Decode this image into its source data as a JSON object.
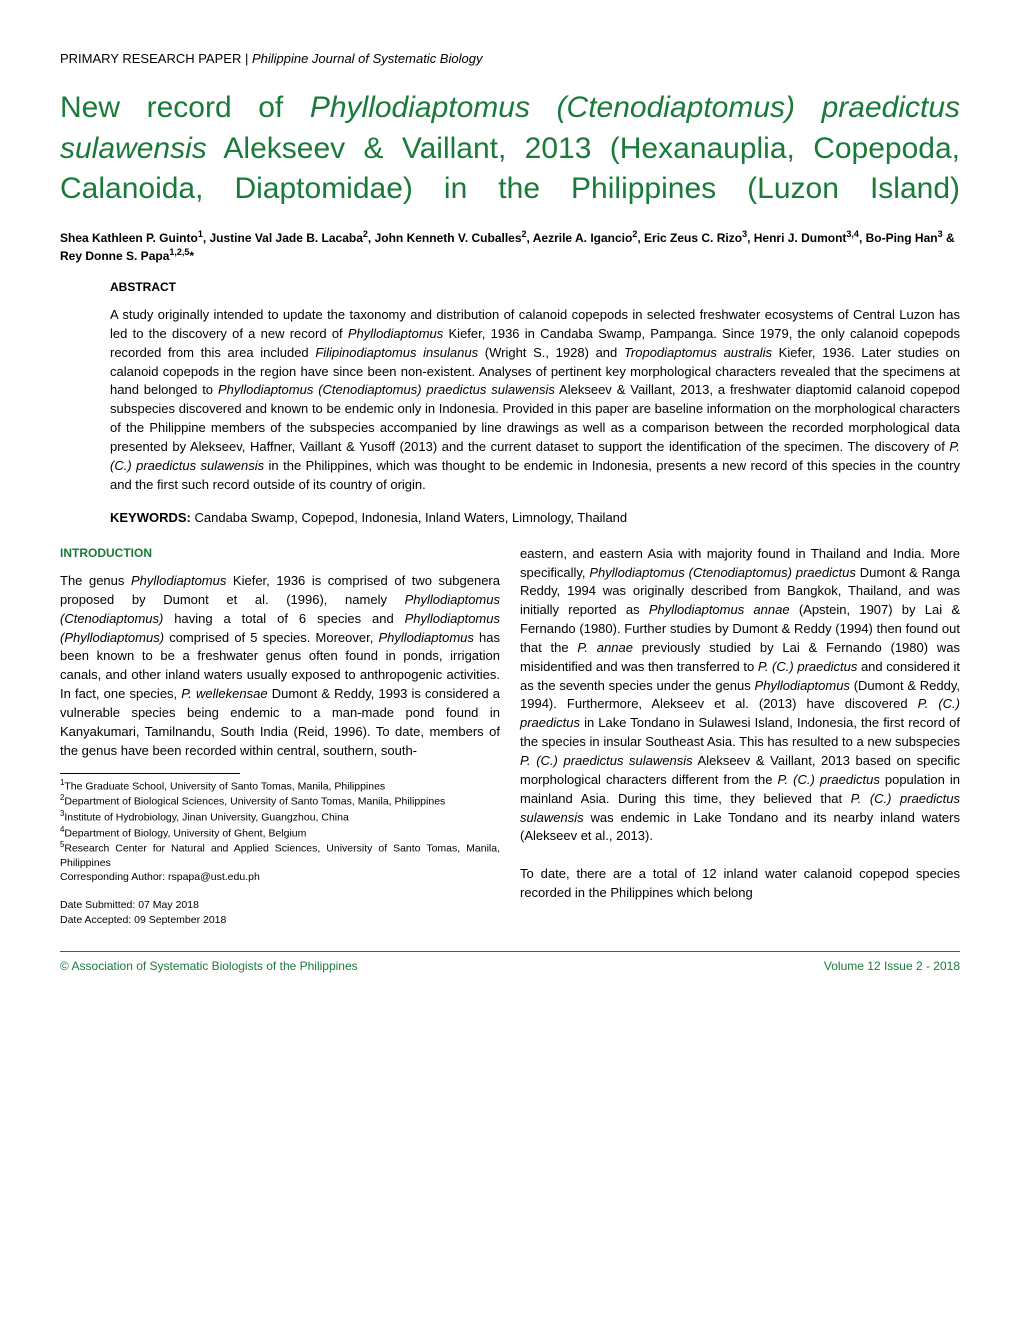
{
  "header": {
    "category": "PRIMARY RESEARCH PAPER",
    "separator": " | ",
    "journal": "Philippine Journal of Systematic Biology"
  },
  "title": {
    "pre1": "New record of ",
    "ital1": "Phyllodiaptomus (Ctenodiaptomus) praedictus sulawensis",
    "mid": " Alekseev & Vaillant, 2013 (Hexanauplia, Copepoda, Calanoida, Diaptomidae) in the Philippines (Luzon Island)"
  },
  "authors_html": "Shea Kathleen P. Guinto<sup>1</sup>, Justine Val Jade B. Lacaba<sup>2</sup>, John Kenneth V. Cuballes<sup>2</sup>, Aezrile A. Igancio<sup>2</sup>, Eric Zeus C. Rizo<sup>3</sup>, Henri J. Dumont<sup>3,4</sup>, Bo-Ping Han<sup>3</sup> & Rey Donne S. Papa<sup>1,2,5</sup>*",
  "abstract": {
    "label": "ABSTRACT",
    "body_html": "A study originally intended to update the taxonomy and distribution of calanoid copepods in selected freshwater ecosystems of Central Luzon has led to the discovery of a new record of <span class=\"ital\">Phyllodiaptomus</span> Kiefer, 1936 in Candaba Swamp, Pampanga. Since 1979, the only calanoid copepods recorded from this area included <span class=\"ital\">Filipinodiaptomus insulanus</span> (Wright S., 1928) and <span class=\"ital\">Tropodiaptomus australis</span> Kiefer, 1936. Later studies on calanoid copepods in the region have since been non-existent. Analyses of pertinent key morphological characters revealed that the specimens at hand belonged to <span class=\"ital\">Phyllodiaptomus (Ctenodiaptomus) praedictus sulawensis</span> Alekseev & Vaillant, 2013, a freshwater diaptomid calanoid copepod subspecies discovered and known to be endemic only in Indonesia. Provided in this paper are baseline information on the morphological characters of the Philippine members of the subspecies accompanied by line drawings as well as a comparison between the recorded morphological data presented by Alekseev, Haffner, Vaillant & Yusoff (2013) and the current dataset to support the identification of the specimen. The discovery of <span class=\"ital\">P. (C.) praedictus sulawensis</span> in the Philippines, which was thought to be endemic in Indonesia, presents a new record of this species in the country and the first such record outside of its country of origin.",
    "keywords_label": "KEYWORDS:",
    "keywords": " Candaba Swamp, Copepod, Indonesia, Inland Waters, Limnology, Thailand"
  },
  "intro": {
    "heading": "INTRODUCTION",
    "left_html": "The genus <span class=\"ital\">Phyllodiaptomus</span> Kiefer, 1936 is comprised of two subgenera proposed by Dumont et al. (1996), namely <span class=\"ital\">Phyllodiaptomus (Ctenodiaptomus)</span> having a total of 6 species and <span class=\"ital\">Phyllodiaptomus (Phyllodiaptomus)</span> comprised of 5 species. Moreover, <span class=\"ital\">Phyllodiaptomus</span> has been known to be a freshwater genus often found in ponds, irrigation canals, and other inland waters usually exposed to anthropogenic activities. In fact, one species, <span class=\"ital\">P. wellekensae</span> Dumont & Reddy, 1993 is considered a vulnerable species being endemic to a man-made pond found in Kanyakumari, Tamilnandu, South India (Reid, 1996). To date, members of the genus have been recorded within central, southern, south-",
    "right_html": "eastern, and eastern Asia with majority found in Thailand and India. More specifically, <span class=\"ital\">Phyllodiaptomus (Ctenodiaptomus) praedictus</span> Dumont & Ranga Reddy, 1994  was originally described from Bangkok, Thailand, and was initially  reported as <span class=\"ital\">Phyllodiaptomus annae</span> (Apstein, 1907) by Lai & Fernando (1980). Further studies by Dumont & Reddy (1994) then found out that the <span class=\"ital\">P. annae</span> previously studied by Lai & Fernando (1980) was misidentified and was then transferred to <span class=\"ital\">P. (C.) praedictus</span> and considered it as the seventh species under the genus <span class=\"ital\">Phyllodiaptomus</span> (Dumont & Reddy, 1994). Furthermore, Alekseev et al. (2013) have discovered <span class=\"ital\">P. (C.) praedictus</span> in Lake Tondano in Sulawesi Island, Indonesia, the first record of the species in insular Southeast Asia. This has resulted to a new subspecies <span class=\"ital\">P. (C.) praedictus sulawensis</span> Alekseev & Vaillant, 2013 based on specific morphological characters different from the <span class=\"ital\">P. (C.) praedictus</span> population in mainland Asia. During this time, they believed that <span class=\"ital\">P. (C.) praedictus sulawensis</span> was endemic in Lake Tondano and its nearby inland waters (Alekseev et al., 2013).",
    "right2": "To date, there are a total of 12 inland water calanoid copepod species recorded in the Philippines which belong"
  },
  "affiliations_html": "<sup>1</sup>The Graduate School, University of Santo Tomas, Manila, Philippines<br><sup>2</sup>Department of Biological Sciences, University of Santo Tomas, Manila, Philippines<br><sup>3</sup>Institute of Hydrobiology, Jinan University, Guangzhou, China<br><sup>4</sup>Department of Biology, University of Ghent, Belgium<br><sup>5</sup>Research Center for Natural and Applied Sciences, University of Santo Tomas, Manila, Philippines<br>Corresponding Author: rspapa@ust.edu.ph<br><br>Date Submitted: 07 May 2018<br>Date Accepted: 09 September 2018",
  "footer": {
    "left": "© Association of Systematic Biologists of the Philippines",
    "right": "Volume 12 Issue 2 - 2018"
  },
  "colors": {
    "accent": "#1a7a3a",
    "text": "#000000",
    "background": "#ffffff"
  }
}
